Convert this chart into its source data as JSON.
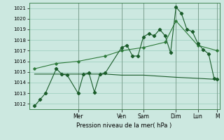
{
  "title": "",
  "xlabel": "Pression niveau de la mer( hPa )",
  "background_color": "#cce8e0",
  "grid_color": "#99ccbb",
  "line_color_dark": "#1a5c2a",
  "line_color_mid": "#2d7a3a",
  "line_color_flat": "#2a6632",
  "ylim": [
    1011.5,
    1021.5
  ],
  "yticks": [
    1012,
    1013,
    1014,
    1015,
    1016,
    1017,
    1018,
    1019,
    1020,
    1021
  ],
  "xlim": [
    -5,
    170
  ],
  "day_labels": [
    "Mer",
    "Ven",
    "Sam",
    "Dim",
    "Lun",
    "M"
  ],
  "day_positions": [
    40,
    80,
    100,
    130,
    150,
    168
  ],
  "series1_x": [
    0,
    5,
    10,
    20,
    25,
    30,
    40,
    45,
    50,
    55,
    60,
    65,
    80,
    85,
    90,
    95,
    100,
    105,
    110,
    115,
    120,
    125,
    130,
    135,
    140,
    145,
    150,
    155,
    160,
    165,
    168
  ],
  "series1_y": [
    1011.8,
    1012.4,
    1013.0,
    1015.3,
    1014.8,
    1014.7,
    1013.0,
    1014.8,
    1014.9,
    1013.1,
    1014.8,
    1014.9,
    1017.3,
    1017.5,
    1016.5,
    1016.5,
    1018.3,
    1018.6,
    1018.4,
    1019.0,
    1018.4,
    1016.8,
    1021.1,
    1020.5,
    1019.0,
    1018.8,
    1017.7,
    1017.1,
    1016.7,
    1014.4,
    1014.3
  ],
  "series2_x": [
    0,
    20,
    40,
    65,
    80,
    100,
    120,
    130,
    150,
    168
  ],
  "series2_y": [
    1015.3,
    1015.8,
    1016.0,
    1016.5,
    1017.0,
    1017.3,
    1017.8,
    1019.8,
    1017.5,
    1017.0
  ],
  "series3_x": [
    0,
    20,
    40,
    65,
    80,
    100,
    130,
    150,
    168
  ],
  "series3_y": [
    1014.8,
    1014.8,
    1014.8,
    1014.8,
    1014.7,
    1014.7,
    1014.5,
    1014.4,
    1014.3
  ]
}
